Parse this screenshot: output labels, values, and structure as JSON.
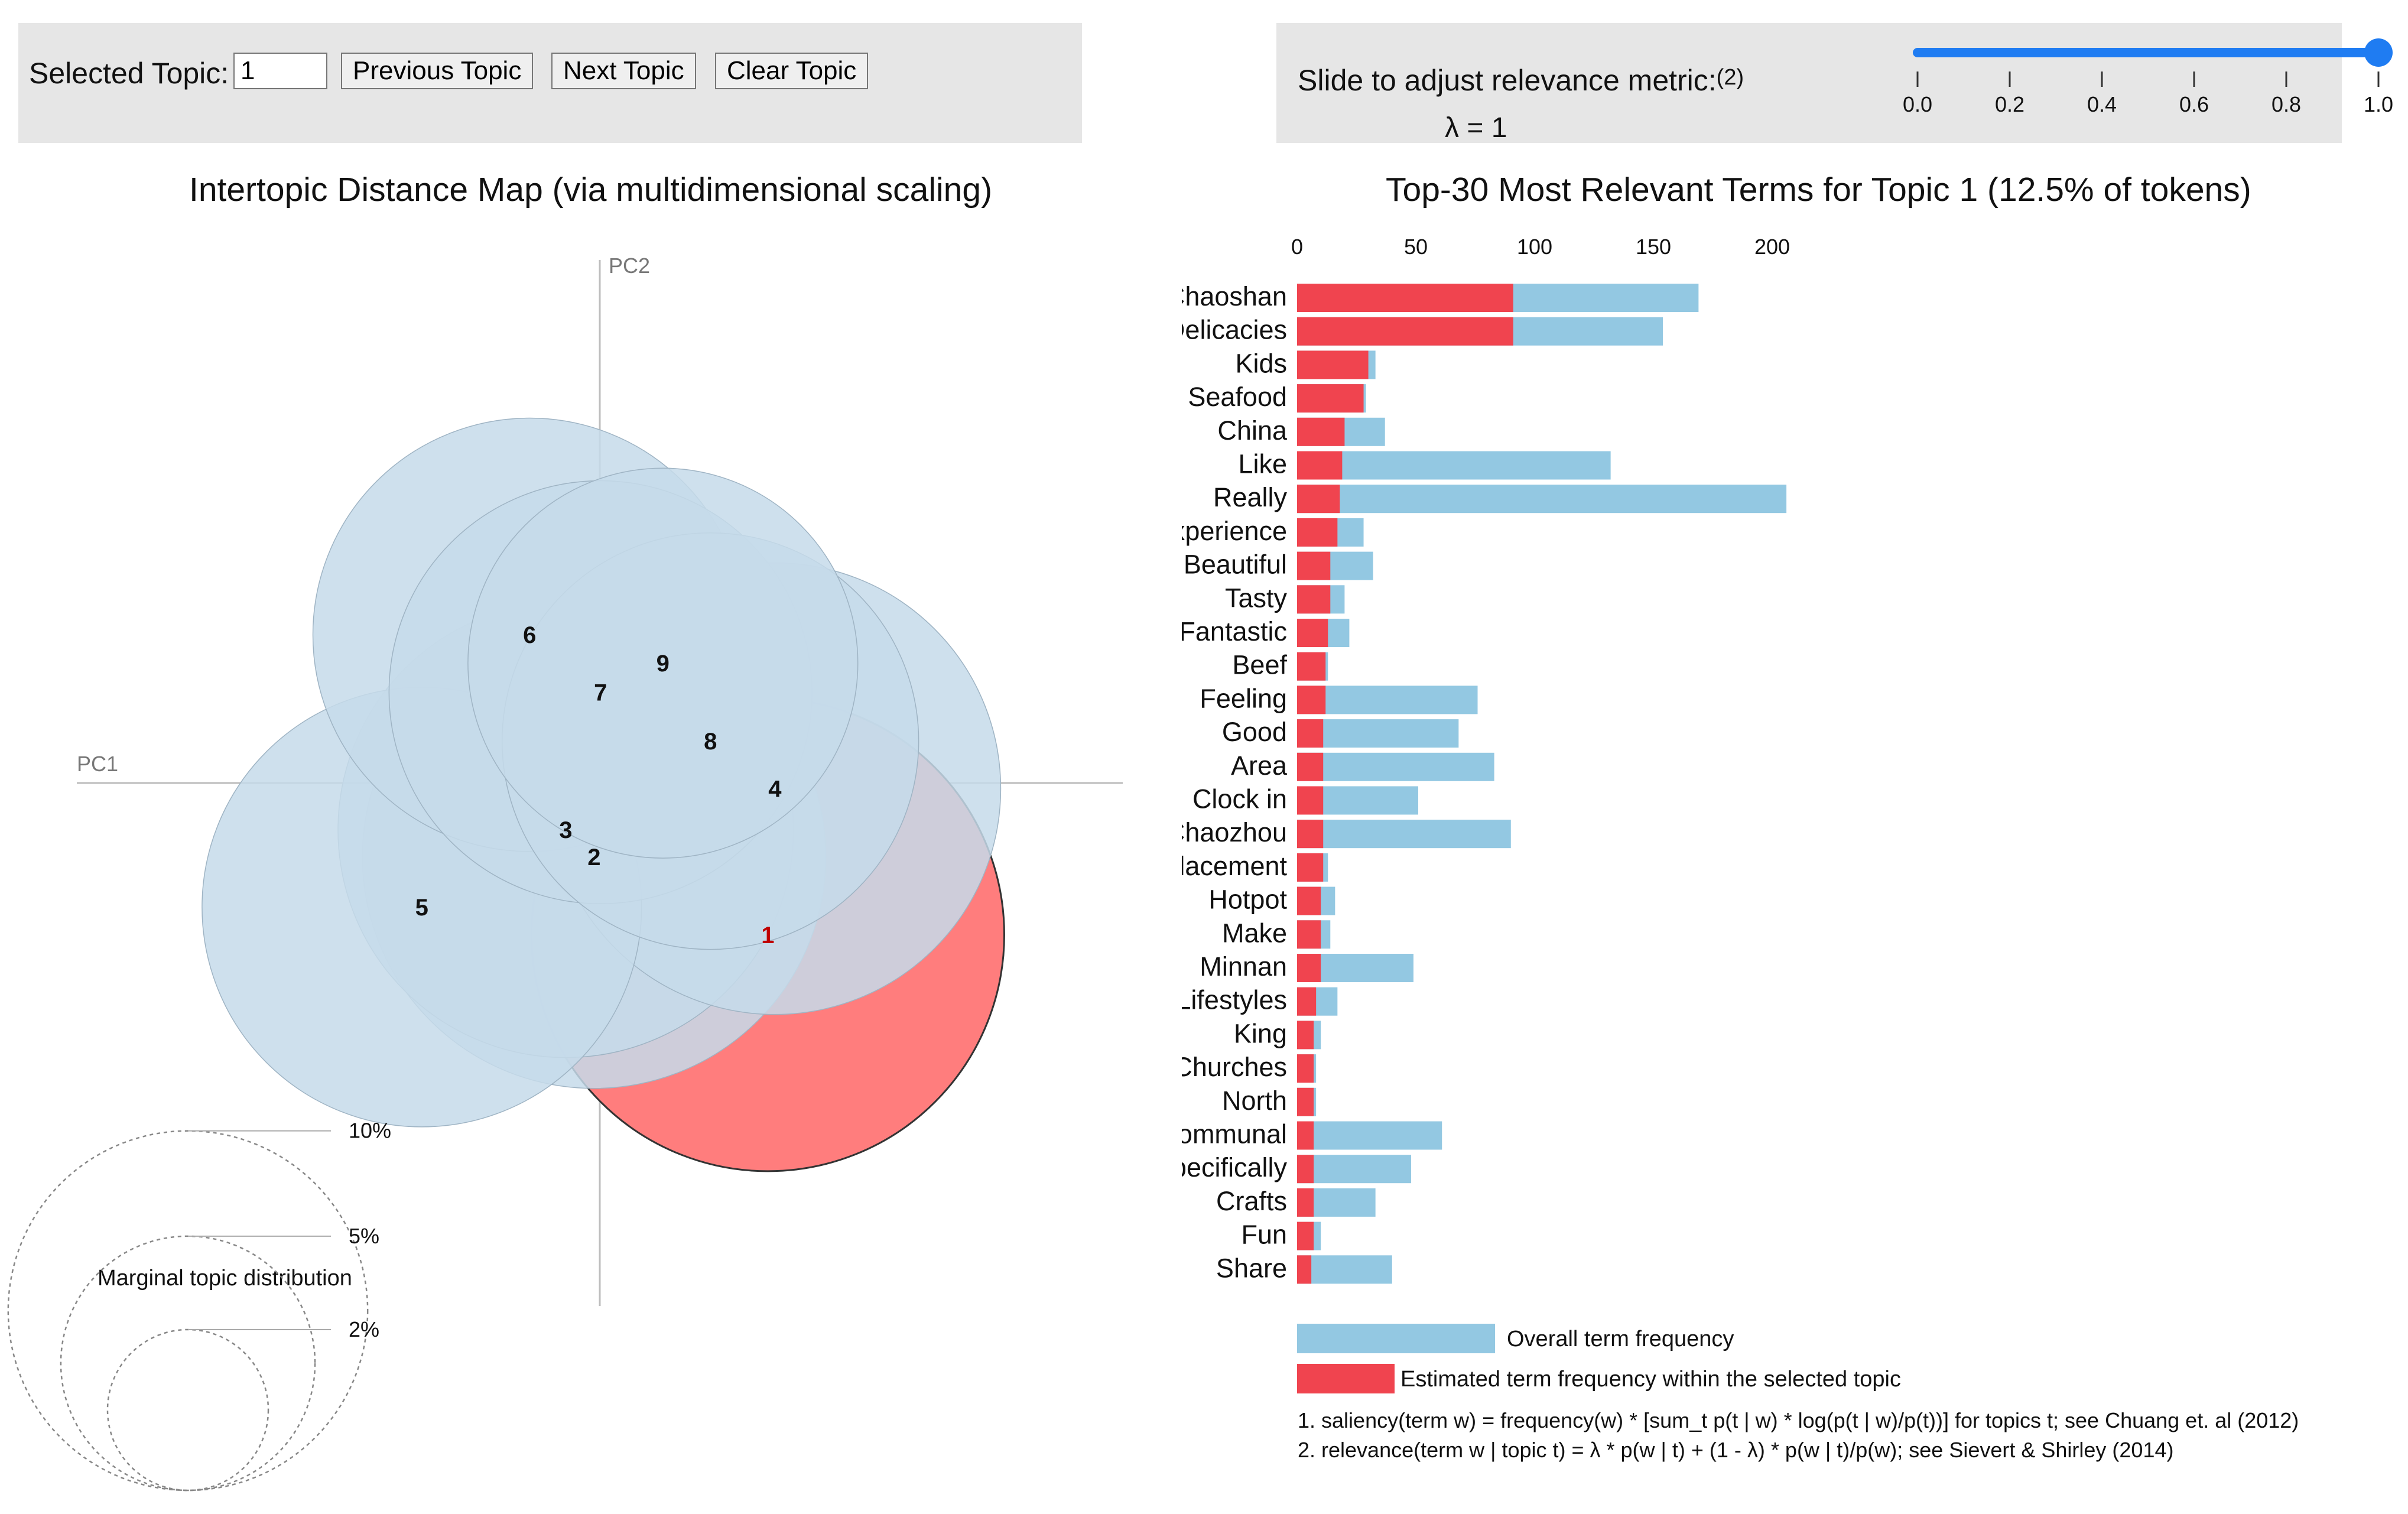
{
  "controls": {
    "selected_topic_label": "Selected Topic:",
    "selected_topic_value": "1",
    "previous_label": "Previous Topic",
    "next_label": "Next Topic",
    "clear_label": "Clear Topic"
  },
  "slider": {
    "label": "Slide to adjust relevance metric:",
    "ref": "(2)",
    "lambda_text": "λ = 1",
    "value": 1.0,
    "ticks": [
      "0.0",
      "0.2",
      "0.4",
      "0.6",
      "0.8",
      "1.0"
    ],
    "color": "#1f7cf2"
  },
  "colors": {
    "topic_fill": "#c6dbea",
    "topic_selected": "#ff7d7d",
    "bar_overall": "#93c8e2",
    "bar_topic": "#f0444f",
    "axis": "#bdbdbd"
  },
  "chart_data": [
    {
      "type": "scatter",
      "title": "Intertopic Distance Map (via multidimensional scaling)",
      "xlabel": "PC1",
      "ylabel": "PC2",
      "selected_topic": "1",
      "topics": [
        {
          "label": "1",
          "pc1": 0.237,
          "pc2": -0.214,
          "size_pct": 12.5
        },
        {
          "label": "2",
          "pc1": -0.008,
          "pc2": -0.104,
          "size_pct": 12.0
        },
        {
          "label": "3",
          "pc1": -0.048,
          "pc2": -0.066,
          "size_pct": 11.6
        },
        {
          "label": "4",
          "pc1": 0.247,
          "pc2": -0.008,
          "size_pct": 11.4
        },
        {
          "label": "5",
          "pc1": -0.251,
          "pc2": -0.175,
          "size_pct": 10.8
        },
        {
          "label": "6",
          "pc1": -0.099,
          "pc2": 0.209,
          "size_pct": 10.5
        },
        {
          "label": "7",
          "pc1": 0.001,
          "pc2": 0.128,
          "size_pct": 10.0
        },
        {
          "label": "8",
          "pc1": 0.156,
          "pc2": 0.059,
          "size_pct": 9.7
        },
        {
          "label": "9",
          "pc1": 0.089,
          "pc2": 0.169,
          "size_pct": 8.5
        }
      ],
      "xlim": [
        -0.3,
        0.3
      ],
      "ylim": [
        -0.3,
        0.3
      ],
      "size_legend_title": "Marginal topic distribution",
      "size_legend": [
        {
          "label": "2%",
          "pct": 2
        },
        {
          "label": "5%",
          "pct": 5
        },
        {
          "label": "10%",
          "pct": 10
        }
      ]
    },
    {
      "type": "bar",
      "orientation": "horizontal",
      "title": "Top-30 Most Relevant Terms for Topic 1 (12.5% of tokens)",
      "xlim": [
        0,
        200
      ],
      "ticks": [
        0,
        50,
        100,
        150,
        200
      ],
      "categories": [
        "Chaoshan",
        "Delicacies",
        "Kids",
        "Seafood",
        "China",
        "Like",
        "Really",
        "Experience",
        "Beautiful",
        "Tasty",
        "Fantastic",
        "Beef",
        "Feeling",
        "Good",
        "Area",
        "Clock in",
        "Chaozhou",
        "Placement",
        "Hotpot",
        "Make",
        "Minnan",
        "Lifestyles",
        "King",
        "Churches",
        "North",
        "Communal",
        "Specifically",
        "Crafts",
        "Fun",
        "Share"
      ],
      "series": [
        {
          "name": "Overall term frequency",
          "values": [
            169,
            154,
            33,
            29,
            37,
            132,
            206,
            28,
            32,
            20,
            22,
            13,
            76,
            68,
            83,
            51,
            90,
            13,
            16,
            14,
            49,
            17,
            10,
            8,
            8,
            61,
            48,
            33,
            10,
            40
          ]
        },
        {
          "name": "Estimated term frequency within the selected topic",
          "values": [
            91,
            91,
            30,
            28,
            20,
            19,
            18,
            17,
            14,
            14,
            13,
            12,
            12,
            11,
            11,
            11,
            11,
            11,
            10,
            10,
            10,
            8,
            7,
            7,
            7,
            7,
            7,
            7,
            7,
            6
          ]
        }
      ],
      "legend": [
        {
          "label": "Overall term frequency",
          "color": "#93c8e2"
        },
        {
          "label": "Estimated term frequency within the selected topic",
          "color": "#f0444f"
        }
      ]
    }
  ],
  "footnotes": [
    "1. saliency(term w) = frequency(w) * [sum_t p(t | w) * log(p(t | w)/p(t))] for topics t; see Chuang et. al (2012)",
    "2. relevance(term w | topic t) = λ * p(w | t) + (1 - λ) * p(w | t)/p(w); see Sievert & Shirley (2014)"
  ]
}
